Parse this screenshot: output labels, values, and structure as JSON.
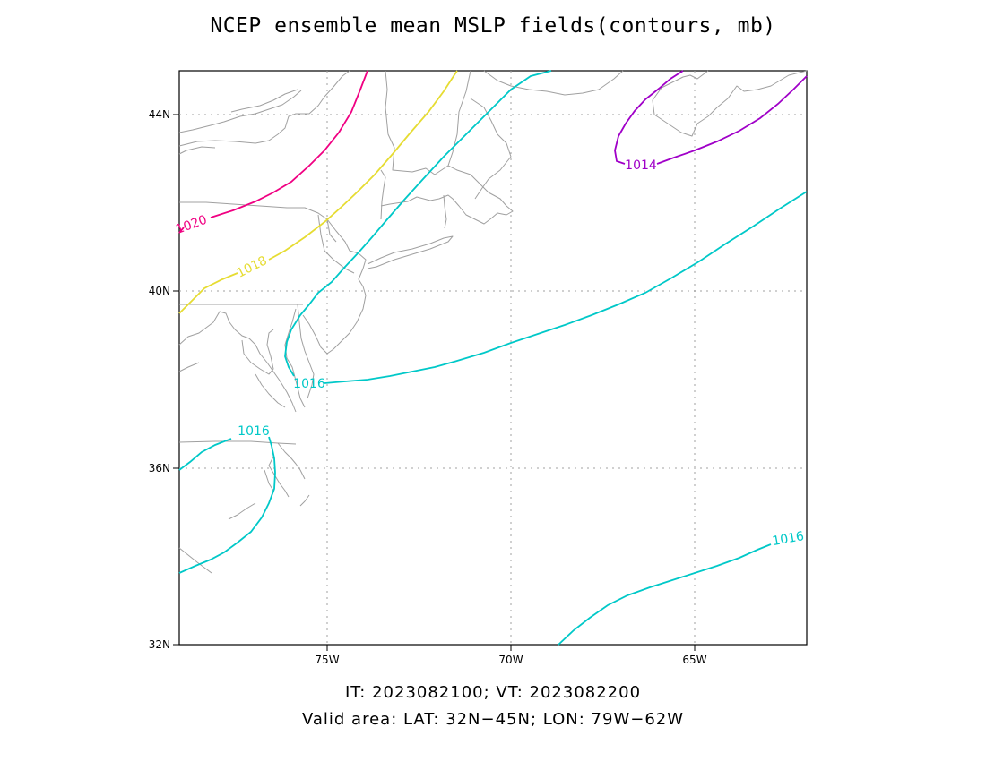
{
  "title": "NCEP ensemble mean MSLP fields(contours, mb)",
  "footer": {
    "line1": "IT: 2023082100; VT: 2023082200",
    "line2": "Valid area: LAT: 32N−45N; LON: 79W−62W"
  },
  "axes": {
    "lat_ticks": [
      "32N",
      "36N",
      "40N",
      "44N"
    ],
    "lon_ticks": [
      "75W",
      "70W",
      "65W"
    ]
  },
  "colors": {
    "c1014": "#a000c8",
    "c1016": "#00c8c8",
    "c1018": "#e6dc32",
    "c1020": "#f00082",
    "coast": "#a0a0a0",
    "grid": "#a0a0a0"
  },
  "contour_labels": {
    "l1014": "1014",
    "l1016a": "1016",
    "l1016b": "1016",
    "l1016c": "1016",
    "l1018": "1018",
    "l1020": "1020"
  }
}
